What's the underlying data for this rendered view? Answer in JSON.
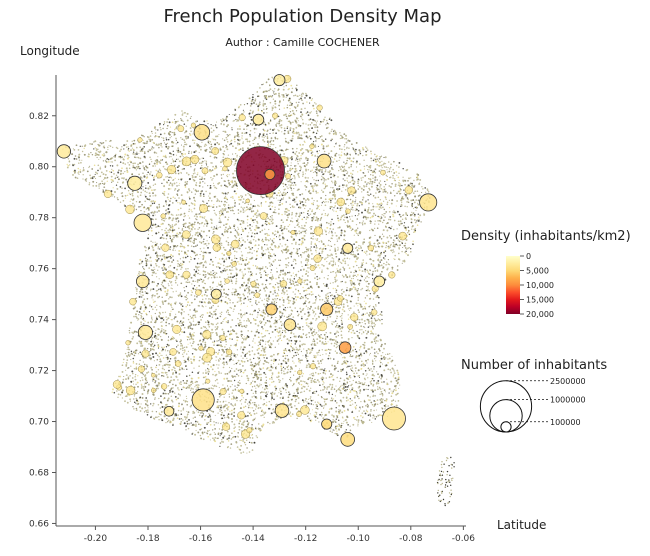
{
  "header": {
    "title": "French Population Density Map",
    "subtitle": "Author : Camille COCHENER"
  },
  "chart_data": {
    "type": "scatter",
    "title": "French Population Density Map",
    "subtitle": "Author : Camille COCHENER",
    "xlabel": "Latitude",
    "ylabel": "Longitude",
    "xlim": [
      -0.215,
      -0.059
    ],
    "ylim": [
      0.659,
      0.836
    ],
    "x_ticks": [
      -0.2,
      -0.18,
      -0.16,
      -0.14,
      -0.12,
      -0.1,
      -0.08,
      -0.06
    ],
    "x_tick_labels": [
      "-0.20",
      "-0.18",
      "-0.16",
      "-0.14",
      "-0.12",
      "-0.10",
      "-0.08",
      "-0.06"
    ],
    "y_ticks": [
      0.66,
      0.68,
      0.7,
      0.72,
      0.74,
      0.76,
      0.78,
      0.8,
      0.82
    ],
    "y_tick_labels": [
      "0.66",
      "0.68",
      "0.70",
      "0.72",
      "0.74",
      "0.76",
      "0.78",
      "0.80",
      "0.82"
    ],
    "grid": false,
    "color_legend": {
      "title": "Density (inhabitants/km2)",
      "min": 0,
      "max": 20000,
      "ticks": [
        0,
        5000,
        10000,
        15000,
        20000
      ],
      "tick_labels": [
        "0",
        "5,000",
        "10,000",
        "15,000",
        "20,000"
      ],
      "colors": [
        "#ffffcc",
        "#ffeda0",
        "#fed976",
        "#feb24c",
        "#fd8d3c",
        "#fc4e2a",
        "#e31a1c",
        "#bd0026",
        "#800026"
      ]
    },
    "size_legend": {
      "title": "Number of inhabitants",
      "values": [
        2500000,
        1000000,
        100000
      ],
      "labels": [
        "2500000",
        "1000000",
        "100000"
      ]
    },
    "highlighted_cities": [
      {
        "x": -0.1372,
        "y": 0.7985,
        "population": 2200000,
        "density": 20000
      },
      {
        "x": -0.1336,
        "y": 0.797,
        "population": 100000,
        "density": 9000
      },
      {
        "x": -0.1595,
        "y": 0.8135,
        "population": 230000,
        "density": 4000
      },
      {
        "x": -0.0734,
        "y": 0.786,
        "population": 280000,
        "density": 3500
      },
      {
        "x": -0.182,
        "y": 0.778,
        "population": 290000,
        "density": 3000
      },
      {
        "x": -0.159,
        "y": 0.7085,
        "population": 470000,
        "density": 4000
      },
      {
        "x": -0.0864,
        "y": 0.7012,
        "population": 500000,
        "density": 3500
      },
      {
        "x": -0.104,
        "y": 0.693,
        "population": 180000,
        "density": 4500
      },
      {
        "x": -0.129,
        "y": 0.7043,
        "population": 175000,
        "density": 3500
      },
      {
        "x": -0.113,
        "y": 0.8022,
        "population": 180000,
        "density": 4000
      },
      {
        "x": -0.185,
        "y": 0.7935,
        "population": 190000,
        "density": 2500
      },
      {
        "x": -0.182,
        "y": 0.755,
        "population": 150000,
        "density": 3000
      },
      {
        "x": -0.212,
        "y": 0.806,
        "population": 170000,
        "density": 2800
      },
      {
        "x": -0.181,
        "y": 0.735,
        "population": 190000,
        "density": 3000
      },
      {
        "x": -0.105,
        "y": 0.729,
        "population": 130000,
        "density": 9000
      },
      {
        "x": -0.112,
        "y": 0.744,
        "population": 140000,
        "density": 6000
      },
      {
        "x": -0.133,
        "y": 0.744,
        "population": 120000,
        "density": 5500
      },
      {
        "x": -0.126,
        "y": 0.738,
        "population": 130000,
        "density": 3500
      },
      {
        "x": -0.13,
        "y": 0.834,
        "population": 120000,
        "density": 2500
      },
      {
        "x": -0.138,
        "y": 0.8185,
        "population": 110000,
        "density": 2800
      },
      {
        "x": -0.092,
        "y": 0.755,
        "population": 110000,
        "density": 2500
      },
      {
        "x": -0.104,
        "y": 0.768,
        "population": 100000,
        "density": 3000
      },
      {
        "x": -0.172,
        "y": 0.704,
        "population": 90000,
        "density": 3000
      },
      {
        "x": -0.112,
        "y": 0.699,
        "population": 100000,
        "density": 5000
      },
      {
        "x": -0.154,
        "y": 0.75,
        "population": 95000,
        "density": 2500
      }
    ]
  }
}
